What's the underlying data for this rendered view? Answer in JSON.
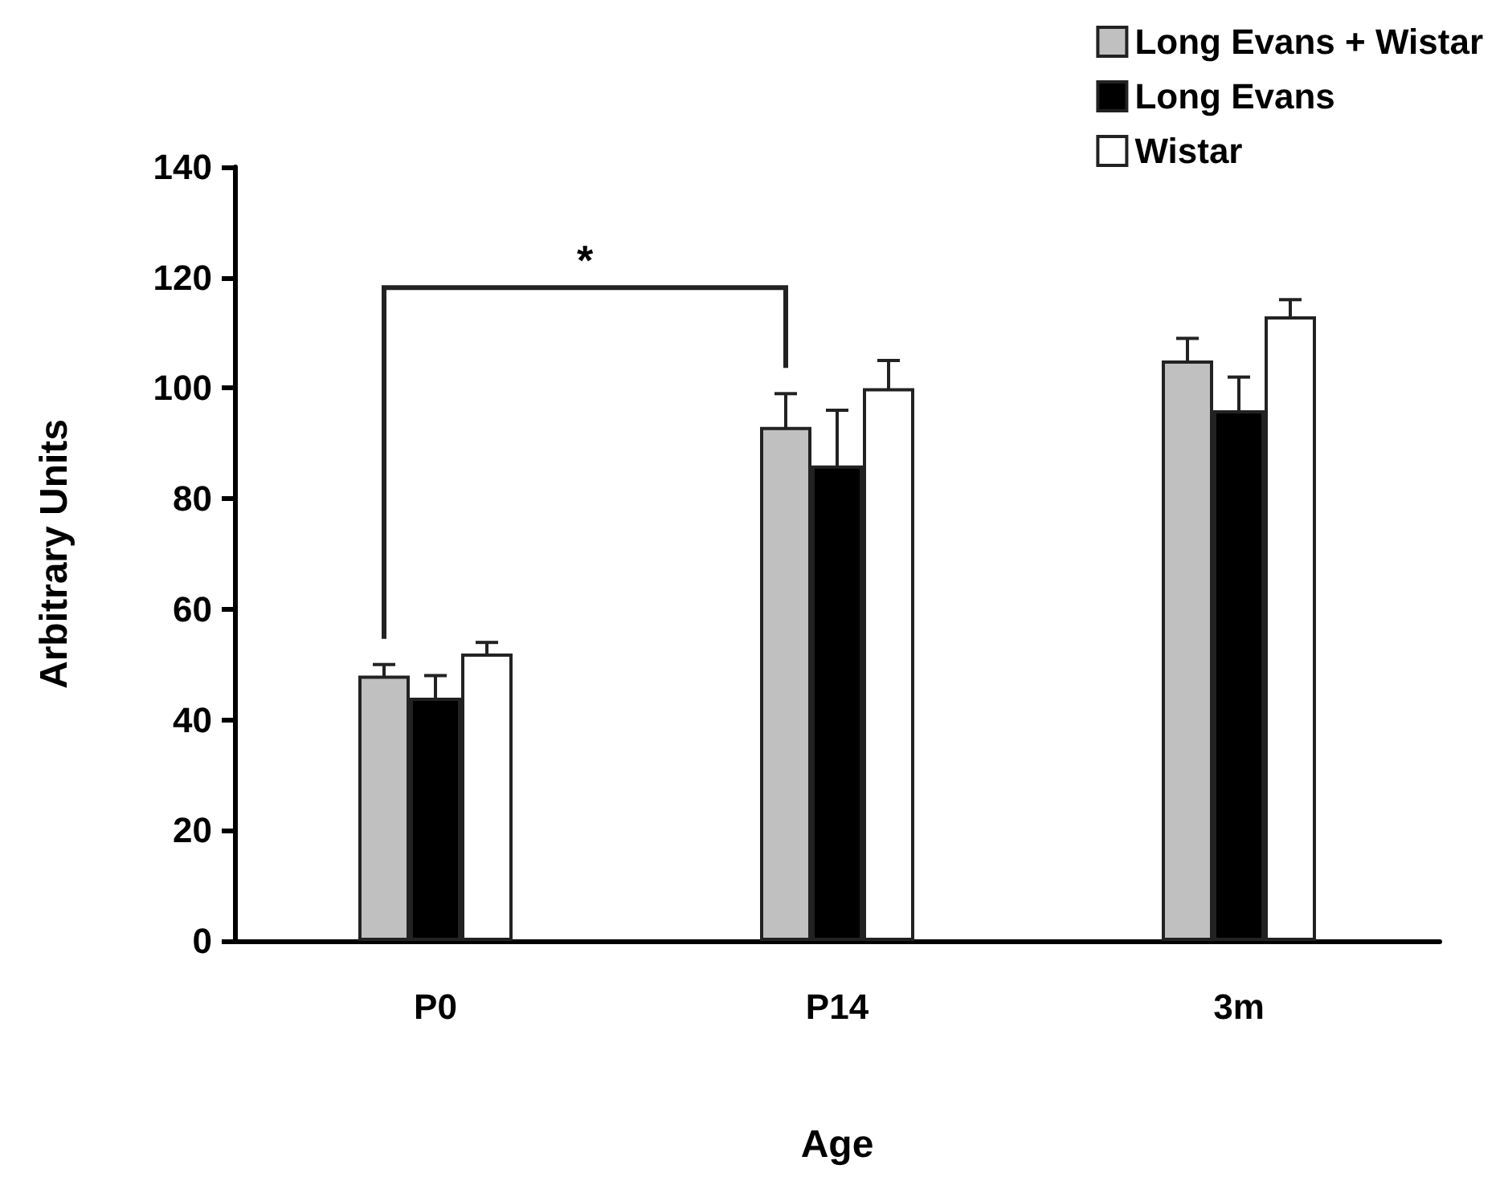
{
  "chart_data": {
    "type": "bar",
    "xlabel": "Age",
    "ylabel": "Arbitrary Units",
    "categories": [
      "P0",
      "P14",
      "3m"
    ],
    "series": [
      {
        "name": "Long Evans + Wistar",
        "color": "#c0c0c0",
        "values": [
          48,
          93,
          105
        ],
        "errors": [
          2,
          6,
          4
        ]
      },
      {
        "name": "Long Evans",
        "color": "#000000",
        "values": [
          44,
          86,
          96
        ],
        "errors": [
          4,
          10,
          6
        ]
      },
      {
        "name": "Wistar",
        "color": "#ffffff",
        "values": [
          52,
          100,
          113
        ],
        "errors": [
          2,
          5,
          3
        ]
      }
    ],
    "ylim": [
      0,
      140
    ],
    "yticks": [
      0,
      20,
      40,
      60,
      80,
      100,
      120,
      140
    ],
    "grid": false,
    "legend": "top right",
    "annotations": [
      "*"
    ]
  }
}
